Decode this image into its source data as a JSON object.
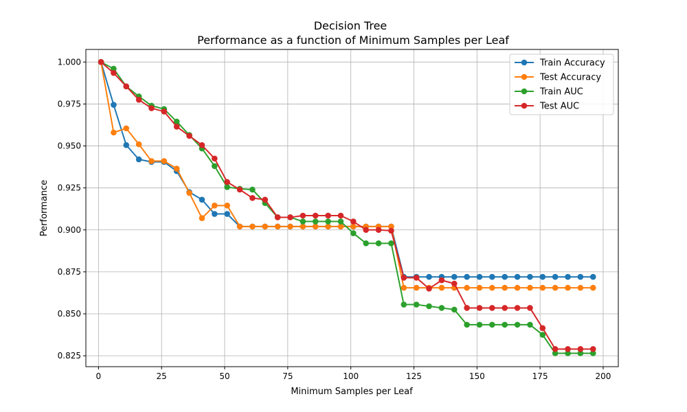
{
  "chart_data": {
    "type": "line",
    "title": "Decision Tree",
    "subtitle": "Performance as a function of Minimum Samples per Leaf",
    "xlabel": "Minimum Samples per Leaf",
    "ylabel": "Performance",
    "xlim": [
      -5,
      206
    ],
    "ylim": [
      0.8185,
      1.0075
    ],
    "xticks": [
      0,
      25,
      50,
      75,
      100,
      125,
      150,
      175,
      200
    ],
    "xtick_labels": [
      "0",
      "25",
      "50",
      "75",
      "100",
      "125",
      "150",
      "175",
      "200"
    ],
    "yticks": [
      0.825,
      0.85,
      0.875,
      0.9,
      0.925,
      0.95,
      0.975,
      1.0
    ],
    "ytick_labels": [
      "0.825",
      "0.850",
      "0.875",
      "0.900",
      "0.925",
      "0.950",
      "0.975",
      "1.000"
    ],
    "grid": true,
    "legend_position": "top-right",
    "x": [
      1,
      6,
      11,
      16,
      21,
      26,
      31,
      36,
      41,
      46,
      51,
      56,
      61,
      66,
      71,
      76,
      81,
      86,
      91,
      96,
      101,
      106,
      111,
      116,
      121,
      126,
      131,
      136,
      141,
      146,
      151,
      156,
      161,
      166,
      171,
      176,
      181,
      186,
      191,
      196
    ],
    "series": [
      {
        "name": "Train Accuracy",
        "color": "#1f77b4",
        "values": [
          1.0,
          0.9745,
          0.9505,
          0.942,
          0.9405,
          0.9405,
          0.935,
          0.9225,
          0.918,
          0.9095,
          0.9095,
          0.902,
          0.902,
          0.902,
          0.902,
          0.902,
          0.902,
          0.902,
          0.902,
          0.902,
          0.902,
          0.902,
          0.902,
          0.902,
          0.872,
          0.872,
          0.872,
          0.872,
          0.872,
          0.872,
          0.872,
          0.872,
          0.872,
          0.872,
          0.872,
          0.872,
          0.872,
          0.872,
          0.872,
          0.872
        ]
      },
      {
        "name": "Test Accuracy",
        "color": "#ff7f0e",
        "values": [
          1.0,
          0.958,
          0.9605,
          0.951,
          0.941,
          0.941,
          0.9365,
          0.922,
          0.907,
          0.9145,
          0.9145,
          0.902,
          0.902,
          0.902,
          0.902,
          0.902,
          0.902,
          0.902,
          0.902,
          0.902,
          0.902,
          0.902,
          0.902,
          0.902,
          0.8655,
          0.8655,
          0.8655,
          0.8655,
          0.8655,
          0.8655,
          0.8655,
          0.8655,
          0.8655,
          0.8655,
          0.8655,
          0.8655,
          0.8655,
          0.8655,
          0.8655,
          0.8655
        ]
      },
      {
        "name": "Train AUC",
        "color": "#2ca02c",
        "values": [
          1.0,
          0.996,
          0.9855,
          0.9795,
          0.974,
          0.972,
          0.9645,
          0.9565,
          0.9485,
          0.938,
          0.9255,
          0.9245,
          0.924,
          0.916,
          0.9075,
          0.9075,
          0.905,
          0.905,
          0.905,
          0.905,
          0.898,
          0.892,
          0.892,
          0.892,
          0.8555,
          0.8555,
          0.8545,
          0.8535,
          0.8525,
          0.8435,
          0.8435,
          0.8435,
          0.8435,
          0.8435,
          0.8435,
          0.8375,
          0.8265,
          0.8265,
          0.8265,
          0.8265
        ]
      },
      {
        "name": "Test AUC",
        "color": "#d62728",
        "values": [
          1.0,
          0.9935,
          0.9855,
          0.9775,
          0.9725,
          0.9705,
          0.9615,
          0.956,
          0.9505,
          0.9425,
          0.9285,
          0.924,
          0.919,
          0.918,
          0.9075,
          0.9075,
          0.9085,
          0.9085,
          0.9085,
          0.9085,
          0.905,
          0.9,
          0.9,
          0.8995,
          0.8715,
          0.8715,
          0.865,
          0.87,
          0.868,
          0.8535,
          0.8535,
          0.8535,
          0.8535,
          0.8535,
          0.8535,
          0.8415,
          0.829,
          0.829,
          0.829,
          0.829
        ]
      }
    ]
  }
}
